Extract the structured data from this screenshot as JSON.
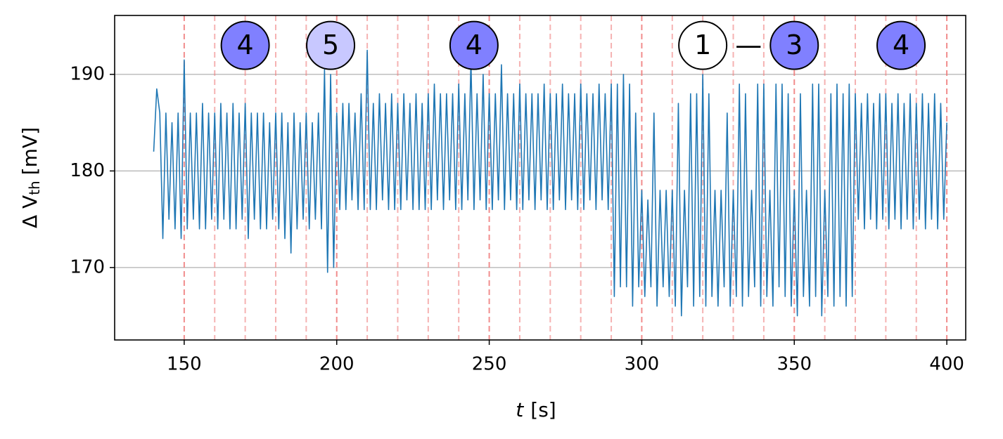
{
  "chart_data": {
    "type": "line",
    "xlabel": {
      "var": "t",
      "unit": "[s]"
    },
    "ylabel": {
      "main": "Δ V",
      "sub": "th",
      "unit": "[mV]"
    },
    "xlim": [
      127.2,
      406.2
    ],
    "ylim": [
      162.5,
      196.1
    ],
    "xticks": [
      150,
      200,
      250,
      300,
      350,
      400
    ],
    "yticks": [
      170,
      180,
      190
    ],
    "grid": true,
    "vlines": [
      150,
      160,
      170,
      180,
      190,
      200,
      210,
      220,
      230,
      240,
      250,
      260,
      270,
      280,
      290,
      300,
      310,
      320,
      330,
      340,
      350,
      360,
      370,
      380,
      390,
      400
    ],
    "vline_color": "#f08080",
    "annotations": [
      {
        "text": "4",
        "x": 170,
        "y": 193,
        "color": "#8080ff"
      },
      {
        "text": "5",
        "x": 198,
        "y": 193,
        "color": "#c8c8ff"
      },
      {
        "text": "4",
        "x": 245,
        "y": 193,
        "color": "#8080ff"
      },
      {
        "text": "1",
        "x": 320,
        "y": 193,
        "color": "#ffffff"
      },
      {
        "text": "—",
        "x": 335,
        "y": 193
      },
      {
        "text": "3",
        "x": 350,
        "y": 193,
        "color": "#8080ff"
      },
      {
        "text": "4",
        "x": 385,
        "y": 193,
        "color": "#8080ff"
      }
    ],
    "x": [
      140,
      141,
      142,
      143,
      144,
      145,
      146,
      147,
      148,
      149,
      150,
      151,
      152,
      153,
      154,
      155,
      156,
      157,
      158,
      159,
      160,
      161,
      162,
      163,
      164,
      165,
      166,
      167,
      168,
      169,
      170,
      171,
      172,
      173,
      174,
      175,
      176,
      177,
      178,
      179,
      180,
      181,
      182,
      183,
      184,
      185,
      186,
      187,
      188,
      189,
      190,
      191,
      192,
      193,
      194,
      195,
      196,
      197,
      198,
      199,
      200,
      201,
      202,
      203,
      204,
      205,
      206,
      207,
      208,
      209,
      210,
      211,
      212,
      213,
      214,
      215,
      216,
      217,
      218,
      219,
      220,
      221,
      222,
      223,
      224,
      225,
      226,
      227,
      228,
      229,
      230,
      231,
      232,
      233,
      234,
      235,
      236,
      237,
      238,
      239,
      240,
      241,
      242,
      243,
      244,
      245,
      246,
      247,
      248,
      249,
      250,
      251,
      252,
      253,
      254,
      255,
      256,
      257,
      258,
      259,
      260,
      261,
      262,
      263,
      264,
      265,
      266,
      267,
      268,
      269,
      270,
      271,
      272,
      273,
      274,
      275,
      276,
      277,
      278,
      279,
      280,
      281,
      282,
      283,
      284,
      285,
      286,
      287,
      288,
      289,
      290,
      291,
      292,
      293,
      294,
      295,
      296,
      297,
      298,
      299,
      300,
      301,
      302,
      303,
      304,
      305,
      306,
      307,
      308,
      309,
      310,
      311,
      312,
      313,
      314,
      315,
      316,
      317,
      318,
      319,
      320,
      321,
      322,
      323,
      324,
      325,
      326,
      327,
      328,
      329,
      330,
      331,
      332,
      333,
      334,
      335,
      336,
      337,
      338,
      339,
      340,
      341,
      342,
      343,
      344,
      345,
      346,
      347,
      348,
      349,
      350,
      351,
      352,
      353,
      354,
      355,
      356,
      357,
      358,
      359,
      360,
      361,
      362,
      363,
      364,
      365,
      366,
      367,
      368,
      369,
      370,
      371,
      372,
      373,
      374,
      375,
      376,
      377,
      378,
      379,
      380,
      381,
      382,
      383,
      384,
      385,
      386,
      387,
      388,
      389,
      390,
      391,
      392,
      393,
      394,
      395,
      396,
      397,
      398,
      399,
      400
    ],
    "series": [
      {
        "color": "#1f77b4",
        "values": [
          182,
          188.5,
          186,
          173,
          186,
          175,
          185,
          174,
          186,
          173,
          191.5,
          174,
          186,
          175,
          186,
          174,
          187,
          174,
          186,
          175,
          186,
          174,
          187,
          175,
          186,
          174,
          187,
          174,
          186,
          175,
          187,
          173,
          186,
          175,
          186,
          174,
          186,
          174,
          185,
          175,
          186,
          174,
          186,
          173,
          185,
          171.5,
          186,
          174,
          185,
          175,
          186,
          174,
          185,
          175,
          186,
          174,
          190.5,
          169.5,
          190,
          170,
          186,
          176,
          187,
          176,
          187,
          177,
          186,
          176,
          188,
          176,
          192.5,
          176,
          187,
          176,
          188,
          177,
          187,
          176,
          188,
          176,
          187,
          176,
          188,
          177,
          187,
          176,
          188,
          176,
          187,
          176,
          188,
          176,
          189,
          177,
          188,
          176,
          188,
          177,
          188,
          176,
          189,
          176,
          188,
          177,
          191.5,
          176,
          188,
          177,
          190,
          176,
          188,
          176,
          188,
          177,
          191,
          176,
          188,
          177,
          188,
          176,
          189,
          176,
          188,
          177,
          188,
          176,
          188,
          177,
          189,
          176,
          188,
          176,
          188,
          177,
          189,
          176,
          188,
          177,
          188,
          176,
          189,
          176,
          188,
          177,
          188,
          176,
          189,
          177,
          188,
          176,
          189,
          167,
          189,
          168,
          190,
          168,
          189,
          166,
          186,
          168,
          178,
          167,
          177,
          168,
          186,
          166,
          178,
          168,
          178,
          167,
          178,
          166,
          187,
          165,
          178,
          168,
          188,
          166,
          188,
          167,
          190,
          166,
          188,
          167,
          178,
          166,
          178,
          168,
          186,
          166,
          178,
          167,
          189,
          166,
          188,
          167,
          178,
          168,
          189,
          166,
          189,
          167,
          178,
          166,
          189,
          168,
          189,
          167,
          188,
          166,
          178,
          165,
          188,
          167,
          178,
          166,
          189,
          167,
          189,
          165,
          178,
          167,
          188,
          166,
          189,
          167,
          188,
          166,
          189,
          167,
          188,
          175,
          187,
          174,
          188,
          175,
          187,
          174,
          188,
          175,
          188,
          174,
          187,
          175,
          188,
          174,
          187,
          175,
          188,
          174,
          187,
          175,
          188,
          174,
          187,
          175,
          188,
          174,
          187,
          175,
          185
        ]
      }
    ]
  }
}
